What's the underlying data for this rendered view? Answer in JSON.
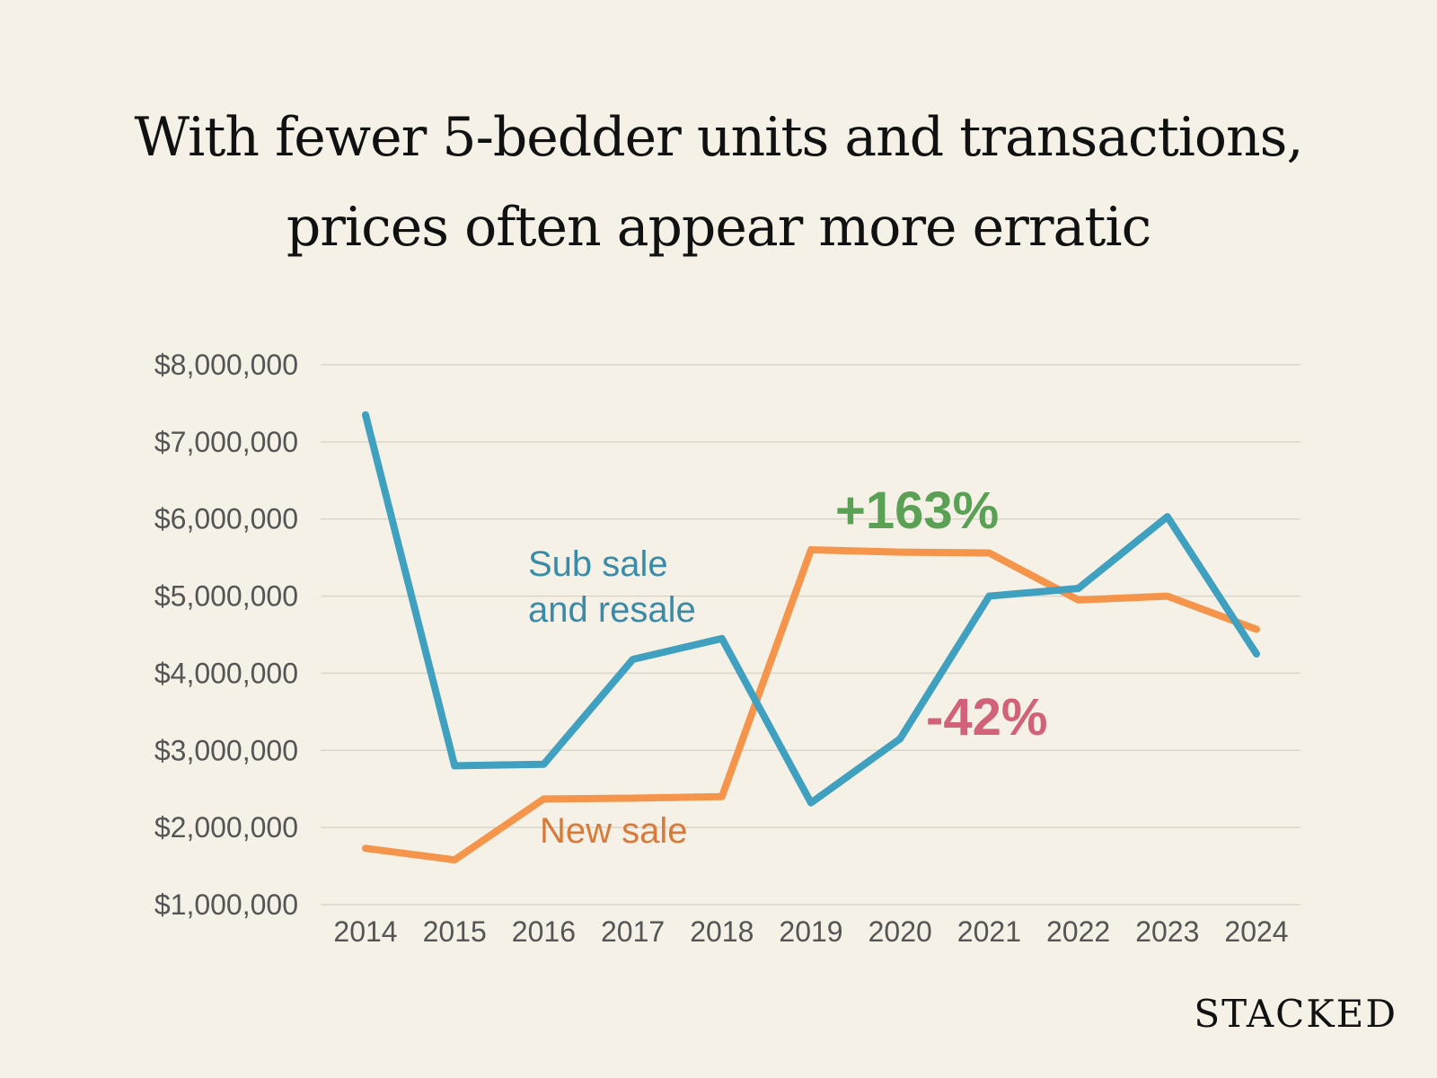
{
  "chart_data": {
    "type": "line",
    "title_lines": [
      "With fewer 5-bedder units and transactions,",
      "prices often appear more erratic"
    ],
    "x": [
      "2014",
      "2015",
      "2016",
      "2017",
      "2018",
      "2019",
      "2020",
      "2021",
      "2022",
      "2023",
      "2024"
    ],
    "y_ticks": [
      1000000,
      2000000,
      3000000,
      4000000,
      5000000,
      6000000,
      7000000,
      8000000
    ],
    "y_tick_labels": [
      "$1,000,000",
      "$2,000,000",
      "$3,000,000",
      "$4,000,000",
      "$5,000,000",
      "$6,000,000",
      "$7,000,000",
      "$8,000,000"
    ],
    "ylim": [
      1000000,
      8000000
    ],
    "grid": true,
    "series": [
      {
        "name": "Sub sale and resale",
        "label_lines": [
          "Sub sale",
          "and resale"
        ],
        "color": "#3fa0bf",
        "label_color": "#3a8ba8",
        "values": [
          7350000,
          2800000,
          2820000,
          4180000,
          4450000,
          2320000,
          3150000,
          5000000,
          5100000,
          6030000,
          4250000
        ]
      },
      {
        "name": "New sale",
        "label_lines": [
          "New sale"
        ],
        "color": "#f5954c",
        "label_color": "#d87a3a",
        "values": [
          1730000,
          1580000,
          2370000,
          2380000,
          2400000,
          5600000,
          5570000,
          5560000,
          4950000,
          5000000,
          4570000
        ]
      }
    ],
    "annotations": [
      {
        "text": "+163%",
        "color": "#5aa055"
      },
      {
        "text": "-42%",
        "color": "#d1627a"
      }
    ]
  },
  "brand": "STACKED"
}
